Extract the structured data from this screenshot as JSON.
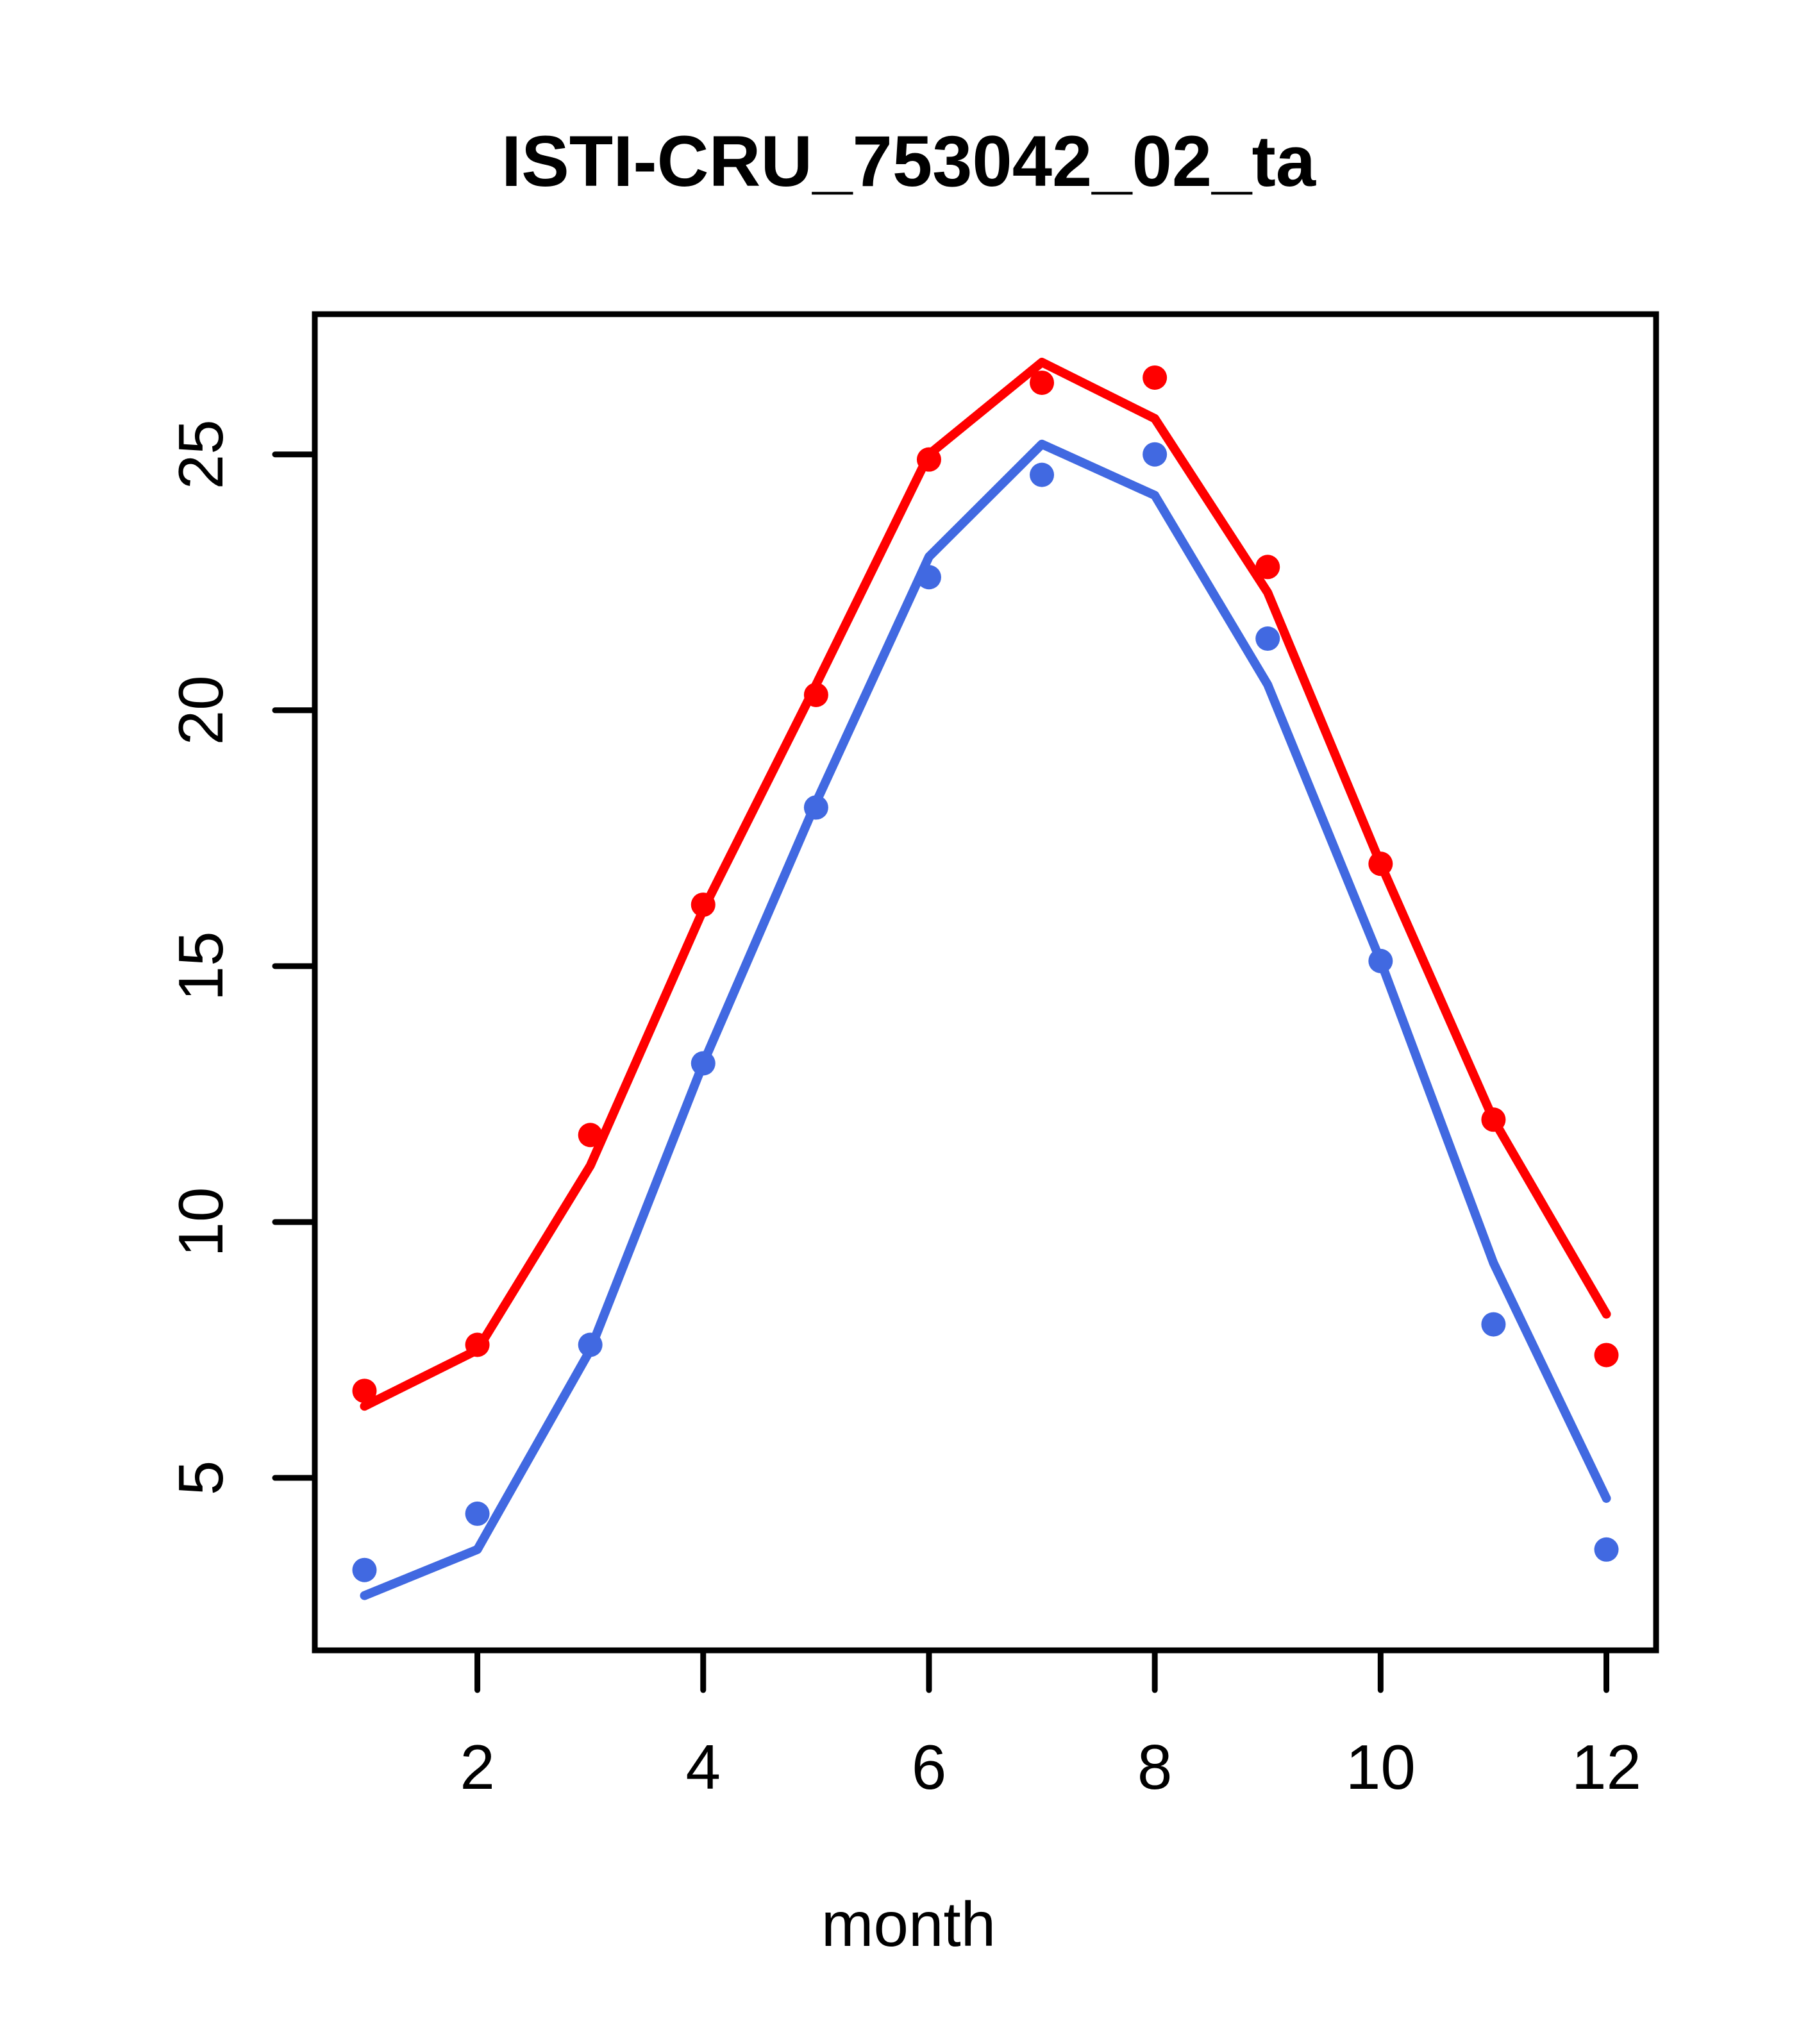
{
  "chart_data": {
    "type": "line",
    "title": "ISTI-CRU_753042_02_ta",
    "xlabel": "month",
    "ylabel": "",
    "x": [
      1,
      2,
      3,
      4,
      5,
      6,
      7,
      8,
      9,
      10,
      11,
      12
    ],
    "xlim": [
      0.56,
      12.44
    ],
    "ylim": [
      1.63,
      27.74
    ],
    "x_ticks": [
      2,
      4,
      6,
      8,
      10,
      12
    ],
    "y_ticks": [
      5,
      10,
      15,
      20,
      25
    ],
    "grid": false,
    "legend": "none",
    "frame_color": "#000000",
    "series": [
      {
        "name": "red-line",
        "kind": "line",
        "color": "#FF0000",
        "values": [
          6.4,
          7.5,
          11.1,
          16.1,
          20.5,
          25.0,
          26.8,
          25.7,
          22.3,
          17.0,
          12.0,
          8.2
        ]
      },
      {
        "name": "red-points",
        "kind": "points",
        "color": "#FF0000",
        "values": [
          6.7,
          7.6,
          11.7,
          16.2,
          20.3,
          24.9,
          26.4,
          26.5,
          22.8,
          17.0,
          12.0,
          7.4
        ]
      },
      {
        "name": "blue-line",
        "kind": "line",
        "color": "#4169E1",
        "values": [
          2.7,
          3.6,
          7.5,
          13.1,
          18.2,
          23.0,
          25.2,
          24.2,
          20.5,
          15.1,
          9.2,
          4.6
        ]
      },
      {
        "name": "blue-points",
        "kind": "points",
        "color": "#4169E1",
        "values": [
          3.2,
          4.3,
          7.6,
          13.1,
          18.1,
          22.6,
          24.6,
          25.0,
          21.4,
          15.1,
          8.0,
          3.6
        ]
      }
    ]
  }
}
